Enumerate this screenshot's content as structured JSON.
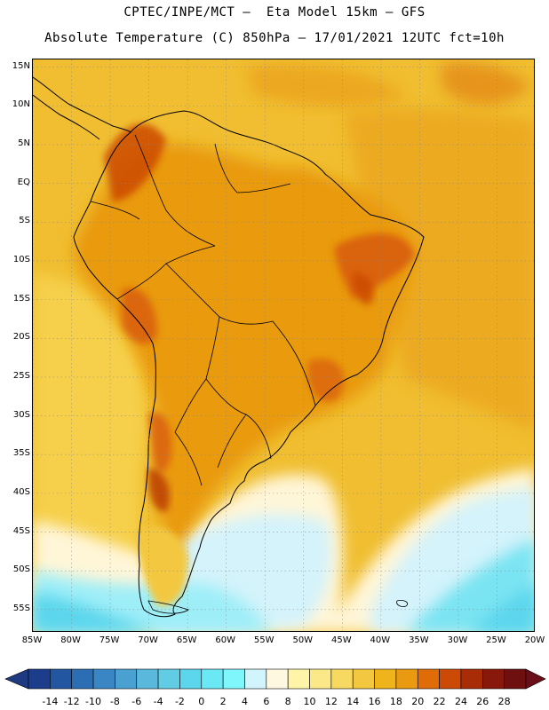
{
  "header": {
    "line1": "CPTEC/INPE/MCT –  Eta Model 15km – GFS",
    "line2": "Absolute Temperature (C) 850hPa – 17/01/2021 12UTC fct=10h"
  },
  "map": {
    "lon_range": [
      -85,
      -20
    ],
    "lat_range": [
      -58,
      16
    ],
    "lat_labels": [
      "15N",
      "10N",
      "5N",
      "EQ",
      "5S",
      "10S",
      "15S",
      "20S",
      "25S",
      "30S",
      "35S",
      "40S",
      "45S",
      "50S",
      "55S"
    ],
    "lon_labels": [
      "85W",
      "80W",
      "75W",
      "70W",
      "65W",
      "60W",
      "55W",
      "50W",
      "45W",
      "40W",
      "35W",
      "30W",
      "25W",
      "20W"
    ],
    "grid_lines": "dotted",
    "ocean_background_color": "#f0be30"
  },
  "colorbar": {
    "labels": [
      "-14",
      "-12",
      "-10",
      "-8",
      "-6",
      "-4",
      "-2",
      "0",
      "2",
      "4",
      "6",
      "8",
      "10",
      "12",
      "14",
      "16",
      "18",
      "20",
      "22",
      "24",
      "26",
      "28"
    ],
    "colors": [
      "#1c3c8c",
      "#2356a0",
      "#2c6eb4",
      "#3a86c4",
      "#4aa0d0",
      "#5ab8dc",
      "#62cce4",
      "#5cd6ec",
      "#6ae8f4",
      "#7ef6fc",
      "#d2f4fc",
      "#fff8e0",
      "#fff4a8",
      "#fbe888",
      "#f7d860",
      "#f3c840",
      "#efb41c",
      "#e99a10",
      "#e06c08",
      "#cc4a06",
      "#a82c06",
      "#88180c",
      "#6e1010"
    ],
    "left_arrow_color": "#1e3a80",
    "right_arrow_color": "#6a0e18"
  }
}
